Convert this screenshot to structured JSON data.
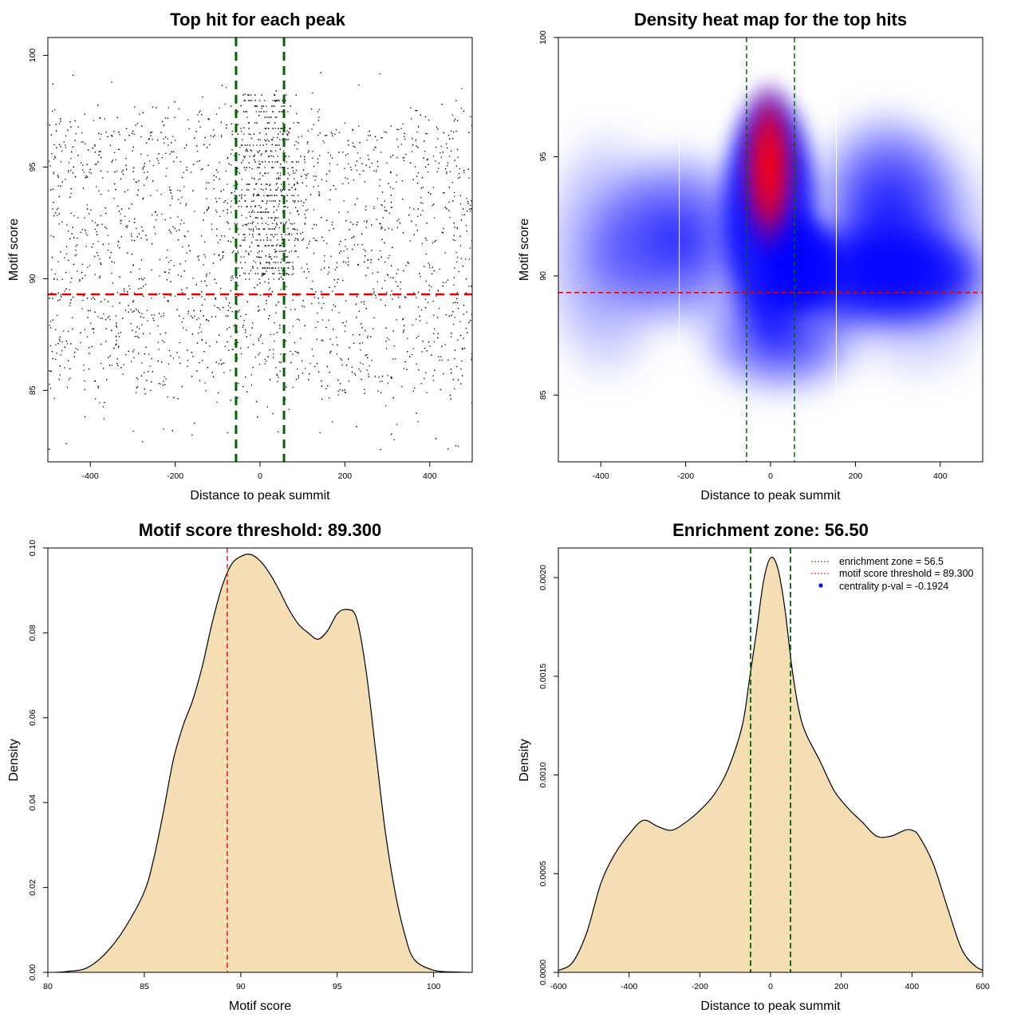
{
  "chart_data": [
    {
      "type": "scatter",
      "title": "Top hit for each peak",
      "xlabel": "Distance to peak summit",
      "ylabel": "Motif score",
      "xlim": [
        -500,
        500
      ],
      "ylim": [
        81.8,
        100.8
      ],
      "xticks": [
        -400,
        -200,
        0,
        200,
        400
      ],
      "yticks": [
        85,
        90,
        95,
        100
      ],
      "vlines": [
        -56.5,
        56.5
      ],
      "hline": 89.3,
      "vline_color": "#006400",
      "hline_color": "#dd0000",
      "points": {
        "n": 3600,
        "x_range": [
          -500,
          500
        ],
        "y_range": [
          82.2,
          100
        ],
        "concentrated_near": 0,
        "grid_columns_at": [
          -8,
          0,
          8,
          16
        ]
      }
    },
    {
      "type": "heatmap",
      "title": "Density heat map for the top hits",
      "xlabel": "Distance to peak summit",
      "ylabel": "Motif score",
      "xlim": [
        -500,
        500
      ],
      "ylim": [
        82.2,
        100
      ],
      "xticks": [
        -400,
        -200,
        0,
        200,
        400
      ],
      "yticks": [
        85,
        90,
        95,
        100
      ],
      "vlines": [
        -56.5,
        56.5
      ],
      "hline": 89.3,
      "white_lines_at": [
        -215,
        155
      ],
      "colors": [
        "#ffffff",
        "#0000ff",
        "#ff0000"
      ],
      "peak": {
        "x": 0,
        "y": 95
      }
    },
    {
      "type": "area",
      "title": "Motif score threshold: 89.300",
      "xlabel": "Motif score",
      "ylabel": "Density",
      "xlim": [
        80,
        102
      ],
      "ylim": [
        0,
        0.1
      ],
      "xticks": [
        80,
        85,
        90,
        95,
        100
      ],
      "yticks": [
        0.0,
        0.02,
        0.04,
        0.06,
        0.08,
        0.1
      ],
      "ytick_labels": [
        "0.00",
        "0.02",
        "0.04",
        "0.06",
        "0.08",
        "0.10"
      ],
      "fill": "#f5deb3",
      "vline": 89.3,
      "vline_color": "#dd0000",
      "x": [
        80.4,
        81,
        82,
        83,
        84,
        85,
        85.5,
        86,
        86.5,
        87,
        87.5,
        88,
        88.5,
        89,
        89.5,
        90,
        90.5,
        91,
        91.5,
        92,
        92.5,
        93,
        93.5,
        94,
        94.5,
        95,
        95.5,
        96,
        96.5,
        97,
        97.5,
        98,
        98.5,
        99,
        100,
        101,
        101.9
      ],
      "y": [
        0.0,
        0.0002,
        0.001,
        0.0045,
        0.0105,
        0.019,
        0.027,
        0.038,
        0.05,
        0.058,
        0.064,
        0.072,
        0.082,
        0.0905,
        0.096,
        0.098,
        0.0985,
        0.097,
        0.094,
        0.09,
        0.0855,
        0.082,
        0.08,
        0.0785,
        0.0805,
        0.0845,
        0.0855,
        0.0835,
        0.071,
        0.052,
        0.033,
        0.019,
        0.009,
        0.003,
        0.0005,
        0.0001,
        0.0
      ]
    },
    {
      "type": "area",
      "title": "Enrichment zone: 56.50",
      "xlabel": "Distance to peak summit",
      "ylabel": "Density",
      "xlim": [
        -600,
        600
      ],
      "ylim": [
        0,
        0.00215
      ],
      "xticks": [
        -600,
        -400,
        -200,
        0,
        200,
        400,
        600
      ],
      "yticks": [
        0,
        0.0005,
        0.001,
        0.0015,
        0.002
      ],
      "ytick_labels": [
        "0.0000",
        "0.0005",
        "0.0010",
        "0.0015",
        "0.0020"
      ],
      "fill": "#f5deb3",
      "vlines": [
        -56.5,
        56.5
      ],
      "x": [
        -619,
        -600,
        -560,
        -520,
        -480,
        -440,
        -400,
        -360,
        -320,
        -280,
        -240,
        -200,
        -160,
        -120,
        -80,
        -60,
        -40,
        -20,
        0,
        20,
        40,
        60,
        80,
        100,
        140,
        180,
        220,
        260,
        300,
        340,
        380,
        400,
        420,
        460,
        500,
        540,
        580,
        619
      ],
      "y": [
        0.0,
        1e-05,
        5e-05,
        0.0002,
        0.00045,
        0.0006,
        0.0007,
        0.00077,
        0.00074,
        0.00072,
        0.00076,
        0.00082,
        0.0009,
        0.00103,
        0.00125,
        0.00148,
        0.00172,
        0.00198,
        0.0021,
        0.00205,
        0.00185,
        0.00155,
        0.00133,
        0.00121,
        0.00107,
        0.00092,
        0.00083,
        0.00076,
        0.00069,
        0.00069,
        0.00072,
        0.00072,
        0.00069,
        0.00055,
        0.00033,
        0.00012,
        3e-05,
        0.0
      ],
      "legend": {
        "placement": "top-right",
        "items": [
          {
            "label": "enrichment zone = 56.5",
            "color": "#006400",
            "kind": "line"
          },
          {
            "label": "motif score threshold = 89.300",
            "color": "#dd0000",
            "kind": "line"
          },
          {
            "label": "centrality p-val = -0.1924",
            "color": "#0000ff",
            "kind": "point"
          }
        ]
      }
    }
  ]
}
